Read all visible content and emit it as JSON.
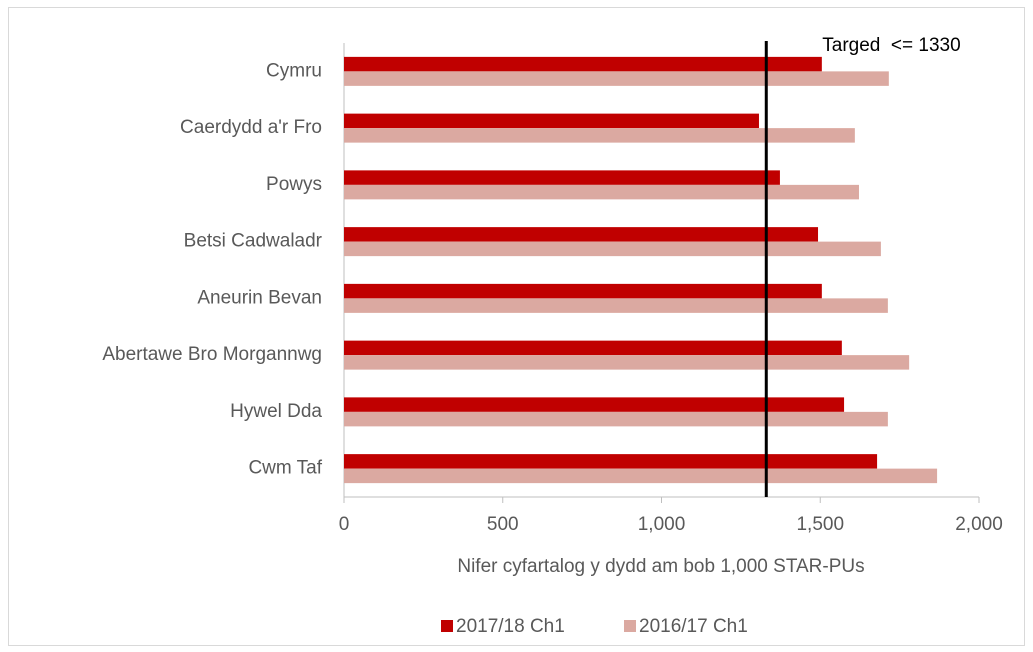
{
  "chart_data": {
    "type": "barh",
    "categories": [
      "Cymru",
      "Caerdydd a'r Fro",
      "Powys",
      "Betsi Cadwaladr",
      "Aneurin Bevan",
      "Abertawe Bro Morgannwg",
      "Hywel Dda",
      "Cwm Taf"
    ],
    "series": [
      {
        "name": "2017/18 Ch1",
        "color": "#c00000",
        "values": [
          1505,
          1307,
          1373,
          1493,
          1505,
          1568,
          1575,
          1679
        ]
      },
      {
        "name": "2016/17 Ch1",
        "color": "#dba9a1",
        "values": [
          1716,
          1609,
          1622,
          1691,
          1713,
          1780,
          1713,
          1868
        ]
      }
    ],
    "xlabel": "Nifer cyfartalog y dydd am bob 1,000 STAR-PUs",
    "xlim": [
      0,
      2000
    ],
    "xticks": [
      0,
      500,
      {
        "value": 1000,
        "label": "1,000"
      },
      {
        "value": 1500,
        "label": "1,500"
      },
      {
        "value": 2000,
        "label": "2,000"
      }
    ],
    "target": {
      "value": 1330,
      "label": "Targed  <= 1330"
    },
    "legend": "bottom",
    "grid": false
  }
}
